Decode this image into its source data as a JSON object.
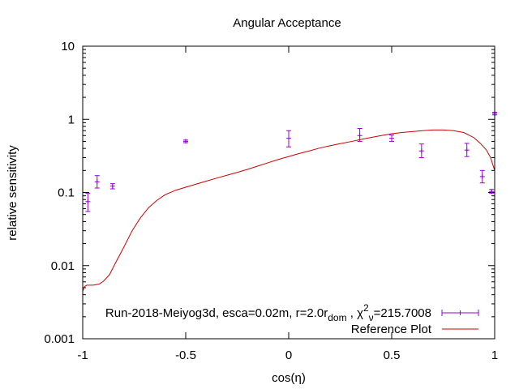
{
  "chart_data": {
    "type": "scatter",
    "title": "Angular Acceptance",
    "xlabel": "cos(η)",
    "ylabel": "relative sensitivity",
    "xlim": [
      -1,
      1
    ],
    "ylim": [
      0.001,
      10
    ],
    "yscale": "log",
    "grid": false,
    "legend_position": "bottom-right",
    "x_ticks": [
      {
        "value": -1,
        "label": "-1"
      },
      {
        "value": -0.5,
        "label": "-0.5"
      },
      {
        "value": 0,
        "label": "0"
      },
      {
        "value": 0.5,
        "label": "0.5"
      },
      {
        "value": 1,
        "label": "1"
      }
    ],
    "y_ticks": [
      {
        "value": 0.001,
        "label": "0.001"
      },
      {
        "value": 0.01,
        "label": "0.01"
      },
      {
        "value": 0.1,
        "label": "0.1"
      },
      {
        "value": 1,
        "label": "1"
      },
      {
        "value": 10,
        "label": "10"
      }
    ],
    "series": [
      {
        "name": "Run-2018-Meiyog3d, esca=0.02m, r=2.0r_dom , χ²_ν=215.7008",
        "legend_parts": {
          "main": "Run-2018-Meiyog3d, esca=0.02m, r=2.0r",
          "sub1": "dom",
          "mid": " , χ",
          "sup": "2",
          "sub2": "ν",
          "end": "=215.7008"
        },
        "kind": "errorbar",
        "color": "#9400d3",
        "points": [
          {
            "x": -0.975,
            "y": 0.075,
            "ylo": 0.055,
            "yhi": 0.097
          },
          {
            "x": -0.93,
            "y": 0.14,
            "ylo": 0.115,
            "yhi": 0.17
          },
          {
            "x": -0.855,
            "y": 0.122,
            "ylo": 0.112,
            "yhi": 0.132
          },
          {
            "x": -0.5,
            "y": 0.5,
            "ylo": 0.48,
            "yhi": 0.52
          },
          {
            "x": 0.0,
            "y": 0.55,
            "ylo": 0.42,
            "yhi": 0.7
          },
          {
            "x": 0.345,
            "y": 0.6,
            "ylo": 0.5,
            "yhi": 0.75
          },
          {
            "x": 0.5,
            "y": 0.55,
            "ylo": 0.5,
            "yhi": 0.61
          },
          {
            "x": 0.645,
            "y": 0.37,
            "ylo": 0.3,
            "yhi": 0.46
          },
          {
            "x": 0.865,
            "y": 0.38,
            "ylo": 0.31,
            "yhi": 0.47
          },
          {
            "x": 0.94,
            "y": 0.165,
            "ylo": 0.135,
            "yhi": 0.2
          },
          {
            "x": 0.985,
            "y": 0.103,
            "ylo": 0.097,
            "yhi": 0.11
          },
          {
            "x": 1.0,
            "y": 1.2,
            "ylo": 1.15,
            "yhi": 1.25
          }
        ]
      },
      {
        "name": "Reference Plot",
        "kind": "line",
        "color": "#cc0000",
        "x": [
          -1,
          -0.99,
          -0.98,
          -0.95,
          -0.92,
          -0.9,
          -0.87,
          -0.84,
          -0.8,
          -0.76,
          -0.72,
          -0.68,
          -0.64,
          -0.6,
          -0.55,
          -0.5,
          -0.45,
          -0.4,
          -0.35,
          -0.3,
          -0.25,
          -0.2,
          -0.15,
          -0.1,
          -0.05,
          0,
          0.05,
          0.1,
          0.15,
          0.2,
          0.25,
          0.3,
          0.35,
          0.4,
          0.45,
          0.5,
          0.55,
          0.6,
          0.65,
          0.7,
          0.75,
          0.8,
          0.85,
          0.9,
          0.93,
          0.96,
          0.98,
          1.0
        ],
        "values": [
          0.0045,
          0.0052,
          0.0054,
          0.0054,
          0.0056,
          0.0061,
          0.0075,
          0.011,
          0.018,
          0.03,
          0.045,
          0.062,
          0.078,
          0.093,
          0.107,
          0.118,
          0.13,
          0.143,
          0.157,
          0.172,
          0.188,
          0.207,
          0.23,
          0.255,
          0.283,
          0.31,
          0.34,
          0.37,
          0.405,
          0.435,
          0.465,
          0.495,
          0.53,
          0.565,
          0.6,
          0.635,
          0.66,
          0.68,
          0.7,
          0.715,
          0.715,
          0.7,
          0.66,
          0.56,
          0.47,
          0.38,
          0.3,
          0.2
        ]
      }
    ]
  }
}
